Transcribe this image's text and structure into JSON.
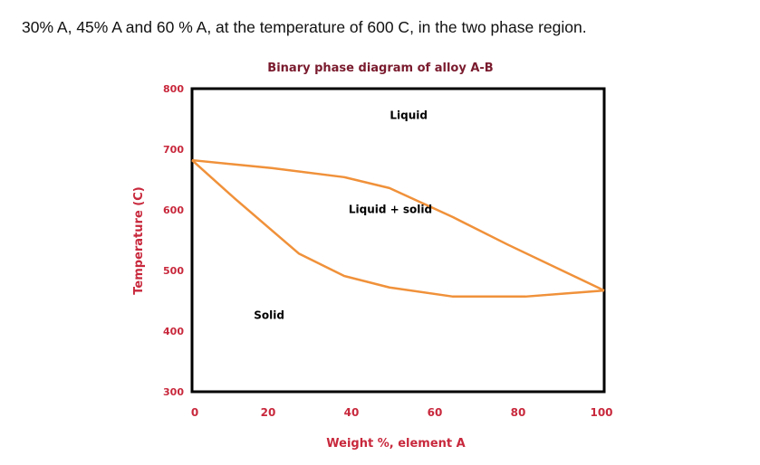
{
  "question_text": "30% A, 45% A and 60 % A, at the temperature of 600 C, in the two phase region.",
  "chart_data": {
    "type": "line",
    "title": "Binary phase diagram of alloy A-B",
    "xlabel": "Weight %, element A",
    "ylabel": "Temperature (C)",
    "xlim": [
      0,
      100
    ],
    "ylim": [
      300,
      800
    ],
    "x_ticks": [
      0,
      20,
      40,
      60,
      80,
      100
    ],
    "y_ticks": [
      800,
      700,
      600,
      500,
      400,
      300
    ],
    "grid": false,
    "line_color": "#f0913a",
    "label_color": "#c8283c",
    "title_color": "#7a1b2e",
    "region_labels": [
      {
        "text": "Liquid",
        "x": 48,
        "y": 750
      },
      {
        "text": "Liquid  + solid",
        "x": 38,
        "y": 595
      },
      {
        "text": "Solid",
        "x": 15,
        "y": 420
      }
    ],
    "series": [
      {
        "x": [
          0,
          19.3,
          36.9,
          47.9,
          63.3,
          76.5,
          100
        ],
        "y": [
          682,
          669,
          654,
          636,
          588,
          543,
          467
        ]
      },
      {
        "x": [
          0,
          10.5,
          25.9,
          36.9,
          47.9,
          63.3,
          80.9,
          100
        ],
        "y": [
          682,
          618,
          528,
          491,
          472,
          457,
          457,
          467
        ]
      }
    ]
  }
}
